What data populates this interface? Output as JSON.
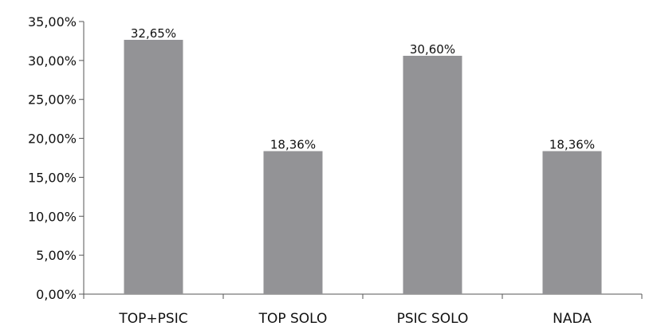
{
  "chart_data": {
    "type": "bar",
    "categories": [
      "TOP+PSIC",
      "TOP SOLO",
      "PSIC SOLO",
      "NADA"
    ],
    "values": [
      32.65,
      18.36,
      30.6,
      18.36
    ],
    "data_labels": [
      "32,65%",
      "18,36%",
      "30,60%",
      "18,36%"
    ],
    "ylim": [
      0,
      35
    ],
    "y_ticks": [
      0,
      5,
      10,
      15,
      20,
      25,
      30,
      35
    ],
    "y_tick_labels": [
      "0,00%",
      "5,00%",
      "10,00%",
      "15,00%",
      "20,00%",
      "25,00%",
      "30,00%",
      "35,00%"
    ],
    "title": "",
    "xlabel": "",
    "ylabel": "",
    "grid": false,
    "legend": "none",
    "bar_color": "#939396",
    "axis_color": "#555555"
  }
}
